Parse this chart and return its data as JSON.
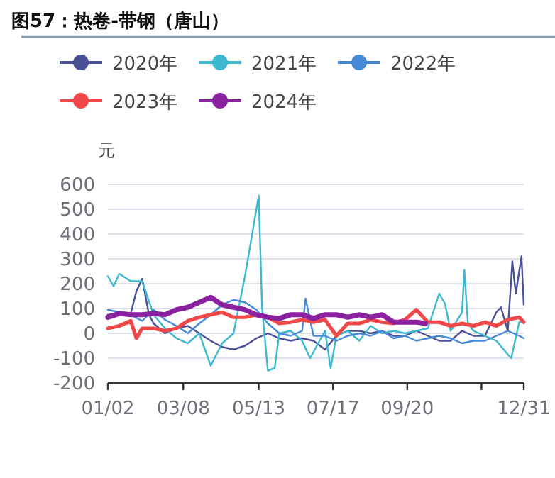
{
  "chart_data": {
    "type": "line",
    "title": "图57：热卷-带钢（唐山）",
    "ylabel": "元",
    "xlim": [
      "--01-02",
      "--12-31"
    ],
    "xticks": [
      {
        "value": "--01-02",
        "label": "01/02"
      },
      {
        "value": "--03-08",
        "label": "03/08"
      },
      {
        "value": "--05-13",
        "label": "05/13"
      },
      {
        "value": "--07-17",
        "label": "07/17"
      },
      {
        "value": "--09-20",
        "label": "09/20"
      },
      {
        "value": "--11-24",
        "label": null
      },
      {
        "value": "--12-31",
        "label": "12/31"
      }
    ],
    "ylim": [
      -200,
      600
    ],
    "yticks": [
      -200,
      -100,
      0,
      100,
      200,
      300,
      400,
      500,
      600
    ],
    "grid": "y",
    "legend": "top",
    "series": [
      {
        "name": "2020年",
        "color": "#4a5096",
        "x": [
          "--01-02",
          "--01-12",
          "--01-22",
          "--01-27",
          "--02-01",
          "--02-07",
          "--02-11",
          "--02-21",
          "--03-02",
          "--03-12",
          "--03-22",
          "--04-01",
          "--04-11",
          "--04-21",
          "--05-01",
          "--05-11",
          "--05-21",
          "--05-31",
          "--06-10",
          "--06-20",
          "--06-30",
          "--07-10",
          "--07-20",
          "--07-30",
          "--08-09",
          "--08-19",
          "--08-29",
          "--09-08",
          "--09-18",
          "--09-28",
          "--10-08",
          "--10-18",
          "--10-28",
          "--11-07",
          "--11-17",
          "--11-27",
          "--12-07",
          "--12-11",
          "--12-17",
          "--12-21",
          "--12-24",
          "--12-29",
          "--12-31"
        ],
        "values": [
          75,
          75,
          80,
          170,
          220,
          75,
          40,
          0,
          20,
          30,
          0,
          -30,
          -55,
          -65,
          -50,
          -20,
          0,
          -20,
          -30,
          -20,
          -30,
          -65,
          -10,
          10,
          10,
          0,
          10,
          -10,
          -10,
          10,
          -10,
          -30,
          -30,
          10,
          -10,
          -10,
          85,
          105,
          10,
          290,
          160,
          310,
          115
        ]
      },
      {
        "name": "2021年",
        "color": "#3cb8cf",
        "x": [
          "--01-02",
          "--01-07",
          "--01-12",
          "--01-22",
          "--02-01",
          "--02-11",
          "--02-21",
          "--03-02",
          "--03-12",
          "--03-22",
          "--04-01",
          "--04-11",
          "--04-21",
          "--05-01",
          "--05-13",
          "--05-16",
          "--05-21",
          "--05-27",
          "--05-31",
          "--06-10",
          "--06-20",
          "--06-27",
          "--07-10",
          "--07-15",
          "--07-20",
          "--07-30",
          "--08-09",
          "--08-19",
          "--08-29",
          "--09-08",
          "--09-18",
          "--09-28",
          "--10-08",
          "--10-18",
          "--10-23",
          "--10-28",
          "--11-07",
          "--11-09",
          "--11-12",
          "--11-17",
          "--11-27",
          "--12-07",
          "--12-17",
          "--12-20",
          "--12-27",
          "--12-31"
        ],
        "values": [
          230,
          190,
          240,
          210,
          210,
          75,
          20,
          -20,
          -40,
          0,
          -130,
          -40,
          0,
          230,
          555,
          100,
          -150,
          -140,
          0,
          10,
          -30,
          -100,
          10,
          -140,
          -10,
          10,
          -30,
          30,
          0,
          10,
          0,
          10,
          20,
          160,
          120,
          10,
          85,
          255,
          45,
          10,
          -10,
          -30,
          -85,
          -100,
          45,
          45
        ]
      },
      {
        "name": "2022年",
        "color": "#4689d6",
        "x": [
          "--01-02",
          "--01-12",
          "--01-22",
          "--02-01",
          "--02-11",
          "--02-21",
          "--03-02",
          "--03-12",
          "--03-22",
          "--04-01",
          "--04-11",
          "--04-21",
          "--05-01",
          "--05-11",
          "--05-21",
          "--05-31",
          "--06-10",
          "--06-20",
          "--06-23",
          "--06-30",
          "--07-10",
          "--07-20",
          "--07-30",
          "--08-09",
          "--08-19",
          "--08-29",
          "--09-08",
          "--09-18",
          "--09-28",
          "--10-08",
          "--10-18",
          "--10-28",
          "--11-07",
          "--11-17",
          "--11-27",
          "--12-07",
          "--12-17",
          "--12-27",
          "--12-31"
        ],
        "values": [
          95,
          85,
          75,
          50,
          95,
          55,
          30,
          0,
          40,
          75,
          115,
          135,
          125,
          95,
          40,
          0,
          -10,
          10,
          140,
          -10,
          -10,
          -30,
          -10,
          0,
          -10,
          10,
          -20,
          -10,
          -30,
          -20,
          -10,
          -20,
          -40,
          -30,
          -30,
          -10,
          10,
          -10,
          -20
        ]
      },
      {
        "name": "2023年",
        "color": "#f04848",
        "x": [
          "--01-02",
          "--01-12",
          "--01-22",
          "--01-27",
          "--02-01",
          "--02-11",
          "--02-21",
          "--03-02",
          "--03-12",
          "--03-22",
          "--04-01",
          "--04-11",
          "--04-21",
          "--05-01",
          "--05-11",
          "--05-21",
          "--05-31",
          "--06-10",
          "--06-20",
          "--06-30",
          "--07-10",
          "--07-20",
          "--07-30",
          "--08-09",
          "--08-19",
          "--08-29",
          "--09-08",
          "--09-18",
          "--09-28",
          "--10-08",
          "--10-18",
          "--10-28",
          "--11-07",
          "--11-17",
          "--11-27",
          "--12-07",
          "--12-17",
          "--12-27",
          "--12-31"
        ],
        "values": [
          20,
          30,
          50,
          -20,
          20,
          20,
          10,
          20,
          50,
          65,
          75,
          85,
          65,
          65,
          75,
          65,
          40,
          45,
          55,
          45,
          55,
          -10,
          40,
          40,
          55,
          45,
          40,
          55,
          95,
          45,
          45,
          30,
          40,
          30,
          45,
          30,
          55,
          65,
          45
        ]
      },
      {
        "name": "2024年",
        "color": "#8a22a0",
        "x": [
          "--01-02",
          "--01-12",
          "--01-22",
          "--02-01",
          "--02-11",
          "--02-21",
          "--03-02",
          "--03-12",
          "--03-22",
          "--04-01",
          "--04-11",
          "--04-21",
          "--05-01",
          "--05-11",
          "--05-21",
          "--05-31",
          "--06-10",
          "--06-20",
          "--06-30",
          "--07-10",
          "--07-20",
          "--07-30",
          "--08-09",
          "--08-19",
          "--08-29",
          "--09-08",
          "--09-18",
          "--09-28",
          "--10-06"
        ],
        "values": [
          65,
          80,
          75,
          75,
          80,
          75,
          95,
          105,
          125,
          145,
          115,
          105,
          95,
          75,
          65,
          60,
          75,
          75,
          60,
          75,
          75,
          65,
          75,
          65,
          75,
          45,
          45,
          45,
          40
        ]
      }
    ]
  }
}
